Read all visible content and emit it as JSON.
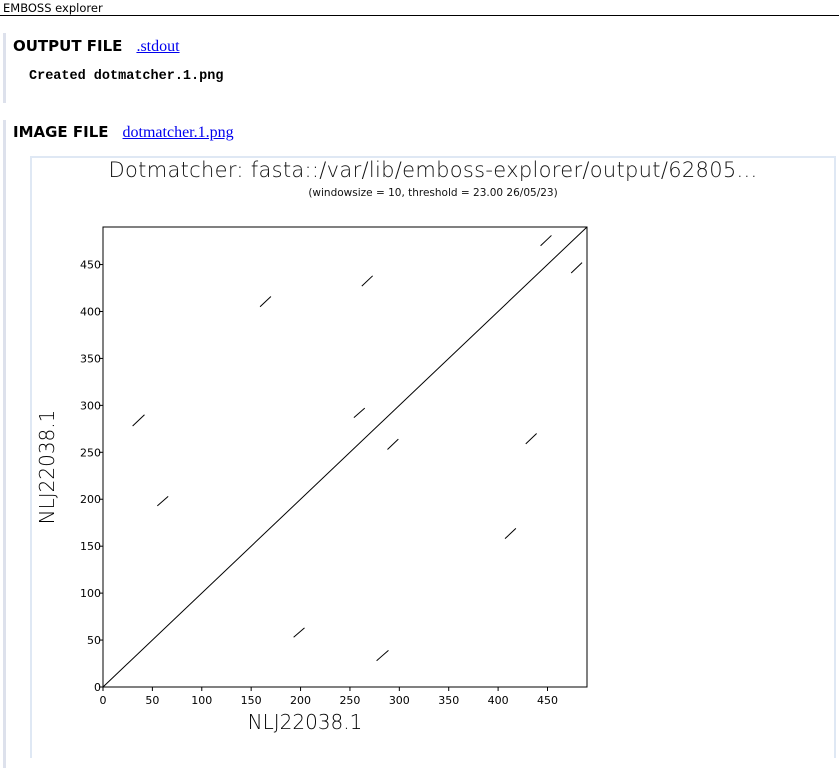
{
  "app": {
    "title": "EMBOSS explorer"
  },
  "output_section": {
    "label": "OUTPUT FILE",
    "link_text": ".stdout",
    "content": "Created dotmatcher.1.png"
  },
  "image_section": {
    "label": "IMAGE FILE",
    "link_text": "dotmatcher.1.png"
  },
  "chart_data": {
    "type": "dotplot",
    "title": "Dotmatcher: fasta::/var/lib/emboss-explorer/output/62805...",
    "subtitle": "(windowsize = 10, threshold = 23.00  26/05/23)",
    "xlabel": "NLJ22038.1",
    "ylabel": "NLJ22038.1",
    "xlim": [
      0,
      490
    ],
    "ylim": [
      0,
      490
    ],
    "xticks": [
      0,
      50,
      100,
      150,
      200,
      250,
      300,
      350,
      400,
      450
    ],
    "yticks": [
      0,
      50,
      100,
      150,
      200,
      250,
      300,
      350,
      400,
      450
    ],
    "segments": [
      {
        "x1": 0,
        "y1": 0,
        "x2": 490,
        "y2": 490
      },
      {
        "x1": 30,
        "y1": 278,
        "x2": 42,
        "y2": 290
      },
      {
        "x1": 55,
        "y1": 193,
        "x2": 66,
        "y2": 203
      },
      {
        "x1": 159,
        "y1": 405,
        "x2": 170,
        "y2": 416
      },
      {
        "x1": 193,
        "y1": 53,
        "x2": 204,
        "y2": 63
      },
      {
        "x1": 254,
        "y1": 287,
        "x2": 265,
        "y2": 297
      },
      {
        "x1": 262,
        "y1": 427,
        "x2": 273,
        "y2": 438
      },
      {
        "x1": 277,
        "y1": 28,
        "x2": 289,
        "y2": 39
      },
      {
        "x1": 288,
        "y1": 253,
        "x2": 299,
        "y2": 264
      },
      {
        "x1": 407,
        "y1": 158,
        "x2": 418,
        "y2": 169
      },
      {
        "x1": 428,
        "y1": 259,
        "x2": 439,
        "y2": 270
      },
      {
        "x1": 443,
        "y1": 470,
        "x2": 454,
        "y2": 481
      },
      {
        "x1": 474,
        "y1": 441,
        "x2": 485,
        "y2": 452
      }
    ]
  }
}
